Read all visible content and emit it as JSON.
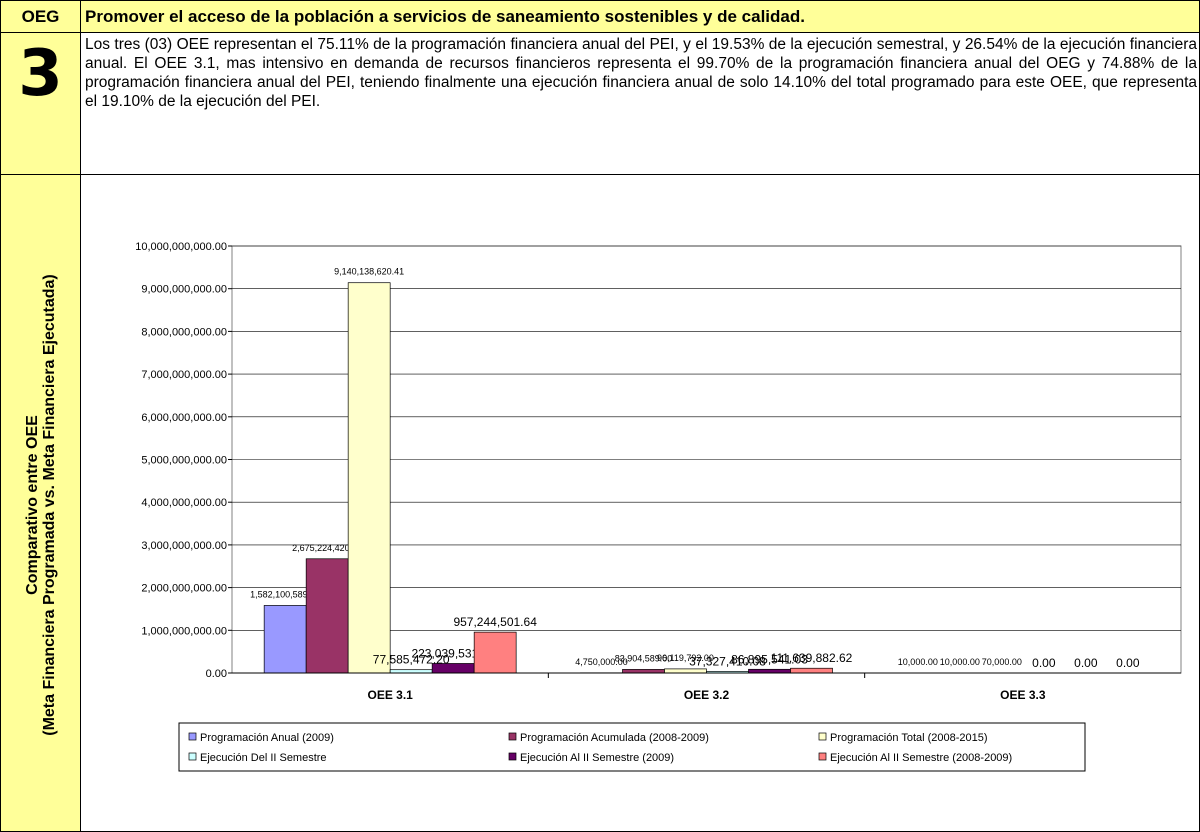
{
  "header": {
    "label": "OEG",
    "title": "Promover el acceso de la población a servicios de saneamiento sostenibles y de calidad."
  },
  "section": {
    "number": "3",
    "text": "Los tres (03) OEE representan el 75.11% de la programación financiera anual del PEI, y el 19.53% de la ejecución semestral, y 26.54% de la ejecución financiera anual. El OEE 3.1, mas intensivo en demanda de recursos financieros representa el 99.70% de la programación financiera anual del OEG y 74.88% de la programación financiera anual del PEI, teniendo finalmente una ejecución financiera anual de solo 14.10% del total programado para este OEE, que representa el 19.10% de la ejecución del PEI."
  },
  "chart_label": [
    "Comparativo entre OEE",
    "(Meta Financiera Programada vs. Meta Financiera Ejecutada)"
  ],
  "chart_data": {
    "type": "bar",
    "categories": [
      "OEE 3.1",
      "OEE 3.2",
      "OEE 3.3"
    ],
    "series": [
      {
        "name": "Programación Anual (2009)",
        "color": "#9999ff",
        "values": [
          1582100589.26,
          4750000,
          10000
        ],
        "value_labels": [
          "1,582,100,589.26",
          "4,750,000.00",
          "10,000.00"
        ]
      },
      {
        "name": "Programación Acumulada (2008-2009)",
        "color": "#993366",
        "values": [
          2675224420.98,
          83904589,
          10000
        ],
        "value_labels": [
          "2,675,224,420.98",
          "83,904,589.00",
          "10,000.00"
        ]
      },
      {
        "name": "Programación Total (2008-2015)",
        "color": "#ffffcc",
        "values": [
          9140138620.41,
          96119792,
          70000
        ],
        "value_labels": [
          "9,140,138,620.41",
          "96,119,792.00",
          "70,000.00"
        ]
      },
      {
        "name": "Ejecución Del II Semestre",
        "color": "#ccffff",
        "values": [
          77585472.2,
          37327410.08,
          0
        ],
        "value_labels": [
          "77,585,472.20",
          "37,327,410.08",
          "0.00"
        ]
      },
      {
        "name": "Ejecución Al II Semestre (2009)",
        "color": "#660066",
        "values": [
          223039531.79,
          86895541.03,
          0
        ],
        "value_labels": [
          "223,039,531.79",
          "86,895,541.03",
          "0.00"
        ]
      },
      {
        "name": "Ejecución Al II Semestre (2008-2009)",
        "color": "#ff8080",
        "values": [
          957244501.64,
          111639882.62,
          0
        ],
        "value_labels": [
          "957,244,501.64",
          "111,639,882.62",
          "0.00"
        ]
      }
    ],
    "ylim": [
      0,
      10000000000
    ],
    "yticks": [
      {
        "value": 0,
        "label": "0.00"
      },
      {
        "value": 1000000000,
        "label": "1,000,000,000.00"
      },
      {
        "value": 2000000000,
        "label": "2,000,000,000.00"
      },
      {
        "value": 3000000000,
        "label": "3,000,000,000.00"
      },
      {
        "value": 4000000000,
        "label": "4,000,000,000.00"
      },
      {
        "value": 5000000000,
        "label": "5,000,000,000.00"
      },
      {
        "value": 6000000000,
        "label": "6,000,000,000.00"
      },
      {
        "value": 7000000000,
        "label": "7,000,000,000.00"
      },
      {
        "value": 8000000000,
        "label": "8,000,000,000.00"
      },
      {
        "value": 9000000000,
        "label": "9,000,000,000.00"
      },
      {
        "value": 10000000000,
        "label": "10,000,000,000.00"
      }
    ],
    "grid": true,
    "legend": "bottom"
  }
}
